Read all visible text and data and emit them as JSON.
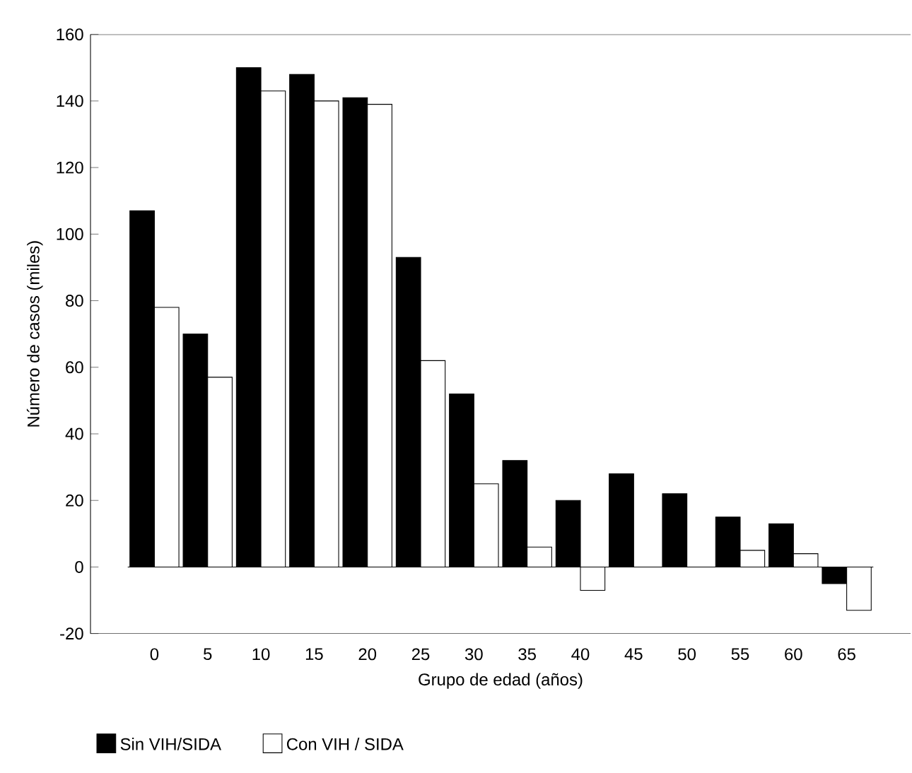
{
  "chart_data": {
    "type": "bar",
    "xlabel": "Grupo de edad (años)",
    "ylabel": "Número de casos (miles)",
    "categories": [
      "0",
      "5",
      "10",
      "15",
      "20",
      "25",
      "30",
      "35",
      "40",
      "45",
      "50",
      "55",
      "60",
      "65"
    ],
    "series": [
      {
        "name": "Sin  VIH/SIDA",
        "color": "#000000",
        "values": [
          107,
          70,
          150,
          148,
          141,
          93,
          52,
          32,
          20,
          28,
          22,
          15,
          13,
          -5
        ]
      },
      {
        "name": "Con  VIH / SIDA",
        "color": "#ffffff",
        "values": [
          78,
          57,
          143,
          140,
          139,
          62,
          25,
          6,
          -7,
          null,
          null,
          5,
          4,
          -13
        ]
      }
    ],
    "ylim": [
      -20,
      160
    ],
    "yticks": [
      -20,
      0,
      20,
      40,
      60,
      80,
      100,
      120,
      140,
      160
    ],
    "legend": "bottom left"
  }
}
